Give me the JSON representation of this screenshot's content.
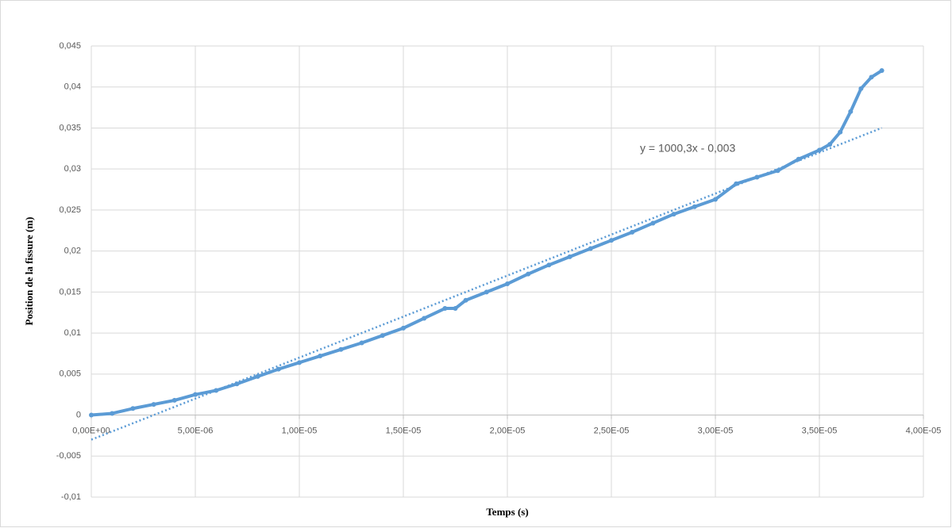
{
  "chart_data": {
    "type": "scatter",
    "x_label": "Temps (s)",
    "y_label": "Position de la fissure (m)",
    "xlim": [
      0,
      4e-05
    ],
    "xticks": [
      {
        "value": 0,
        "label": "0,00E+00"
      },
      {
        "value": 5e-06,
        "label": "5,00E-06"
      },
      {
        "value": 1e-05,
        "label": "1,00E-05"
      },
      {
        "value": 1.5e-05,
        "label": "1,50E-05"
      },
      {
        "value": 2e-05,
        "label": "2,00E-05"
      },
      {
        "value": 2.5e-05,
        "label": "2,50E-05"
      },
      {
        "value": 3e-05,
        "label": "3,00E-05"
      },
      {
        "value": 3.5e-05,
        "label": "3,50E-05"
      },
      {
        "value": 4e-05,
        "label": "4,00E-05"
      }
    ],
    "ylim": [
      -0.01,
      0.045
    ],
    "yticks": [
      {
        "value": -0.01,
        "label": "-0,01"
      },
      {
        "value": -0.005,
        "label": "-0,005"
      },
      0,
      {
        "value": 0.005,
        "label": "0,005"
      },
      {
        "value": 0.01,
        "label": "0,01"
      },
      {
        "value": 0.015,
        "label": "0,015"
      },
      {
        "value": 0.02,
        "label": "0,02"
      },
      {
        "value": 0.025,
        "label": "0,025"
      },
      {
        "value": 0.03,
        "label": "0,03"
      },
      {
        "value": 0.035,
        "label": "0,035"
      },
      {
        "value": 0.04,
        "label": "0,04"
      },
      {
        "value": 0.045,
        "label": "0,045"
      }
    ],
    "grid": true,
    "series": [
      {
        "color": "#5b9bd5",
        "x": [
          0,
          1e-06,
          2e-06,
          3e-06,
          4e-06,
          5e-06,
          6e-06,
          7e-06,
          8e-06,
          9e-06,
          1e-05,
          1.1e-05,
          1.2e-05,
          1.3e-05,
          1.4e-05,
          1.5e-05,
          1.6e-05,
          1.7e-05,
          1.75e-05,
          1.8e-05,
          1.9e-05,
          2e-05,
          2.1e-05,
          2.2e-05,
          2.3e-05,
          2.4e-05,
          2.5e-05,
          2.6e-05,
          2.7e-05,
          2.8e-05,
          2.9e-05,
          3e-05,
          3.1e-05,
          3.2e-05,
          3.3e-05,
          3.4e-05,
          3.5e-05,
          3.55e-05,
          3.6e-05,
          3.65e-05,
          3.7e-05,
          3.75e-05,
          3.8e-05
        ],
        "values": [
          0,
          0.0002,
          0.0008,
          0.0013,
          0.0018,
          0.0025,
          0.003,
          0.0038,
          0.0047,
          0.0056,
          0.0064,
          0.0072,
          0.008,
          0.0088,
          0.0097,
          0.0106,
          0.0118,
          0.013,
          0.013,
          0.014,
          0.015,
          0.016,
          0.0172,
          0.0183,
          0.0193,
          0.0203,
          0.0213,
          0.0223,
          0.0234,
          0.0245,
          0.0254,
          0.0263,
          0.0282,
          0.029,
          0.0298,
          0.0312,
          0.0323,
          0.033,
          0.0345,
          0.037,
          0.0398,
          0.0412,
          0.042
        ]
      }
    ],
    "trendline": {
      "slope": 1000.3,
      "intercept": -0.003,
      "label": "y = 1000,3x - 0,003"
    }
  }
}
